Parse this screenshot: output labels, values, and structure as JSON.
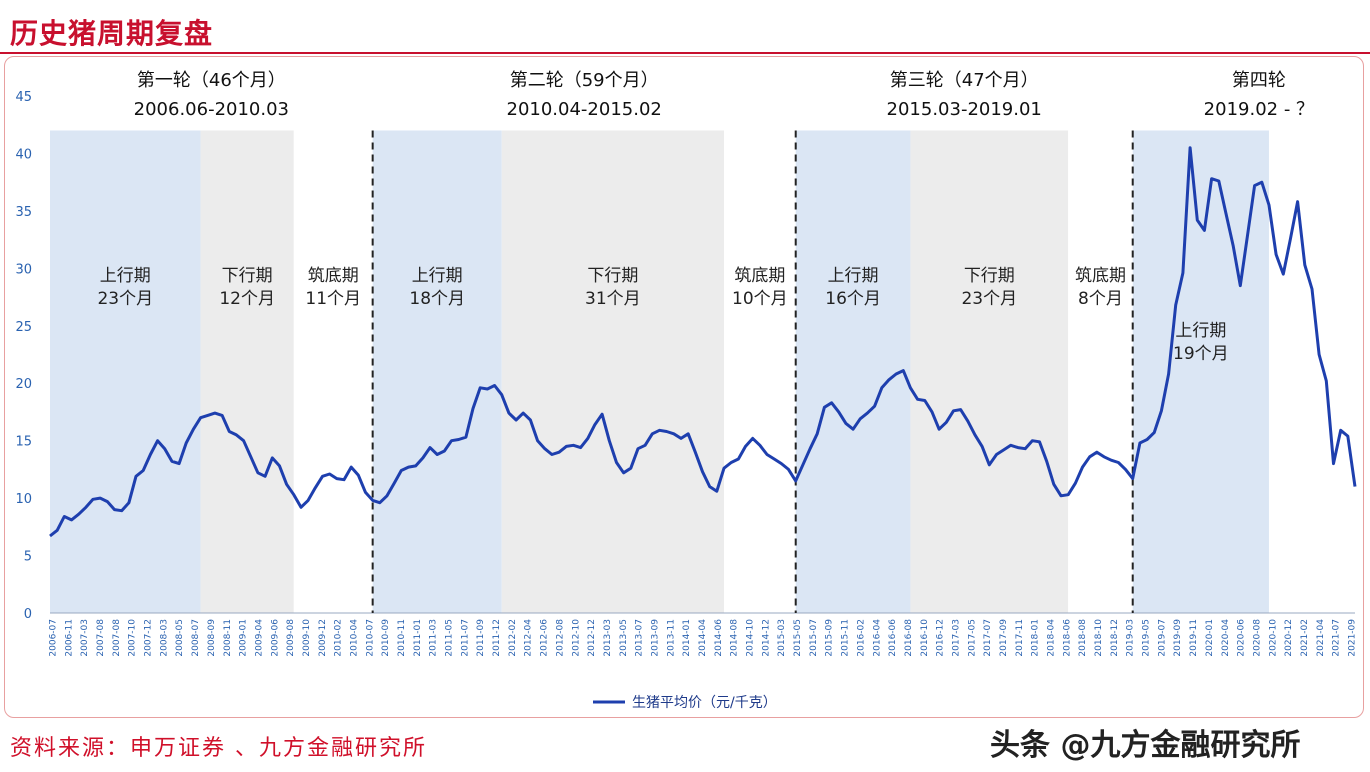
{
  "page_title": "历史猪周期复盘",
  "source_text": "资料来源：申万证券 、九方金融研究所",
  "watermark": "头条 @九方金融研究所",
  "colors": {
    "line": "#1e3fae",
    "shade_up": "#dbe6f4",
    "shade_down": "#ececec",
    "axis_text": "#2a62b0",
    "accent": "#c8102e"
  },
  "chart_data": {
    "type": "line",
    "ylim": [
      0,
      45
    ],
    "yticks": [
      0,
      5,
      10,
      15,
      20,
      25,
      30,
      35,
      40,
      45
    ],
    "xlim": [
      "2006-07",
      "2021-09"
    ],
    "xticks": [
      "2006-07",
      "2006-11",
      "2007-03",
      "2007-08",
      "2007-08",
      "2007-10",
      "2007-12",
      "2008-03",
      "2008-05",
      "2008-07",
      "2008-09",
      "2008-11",
      "2009-01",
      "2009-04",
      "2009-06",
      "2009-08",
      "2009-10",
      "2009-12",
      "2010-02",
      "2010-04",
      "2010-07",
      "2010-09",
      "2010-11",
      "2011-01",
      "2011-03",
      "2011-05",
      "2011-07",
      "2011-09",
      "2011-12",
      "2012-02",
      "2012-04",
      "2012-06",
      "2012-08",
      "2012-10",
      "2012-12",
      "2013-03",
      "2013-05",
      "2013-07",
      "2013-09",
      "2013-11",
      "2014-01",
      "2014-04",
      "2014-06",
      "2014-08",
      "2014-10",
      "2014-12",
      "2015-03",
      "2015-05",
      "2015-07",
      "2015-09",
      "2015-11",
      "2016-02",
      "2016-04",
      "2016-06",
      "2016-08",
      "2016-10",
      "2016-12",
      "2017-03",
      "2017-05",
      "2017-07",
      "2017-09",
      "2017-11",
      "2018-01",
      "2018-04",
      "2018-06",
      "2018-08",
      "2018-10",
      "2018-12",
      "2019-03",
      "2019-05",
      "2019-07",
      "2019-09",
      "2019-11",
      "2020-01",
      "2020-04",
      "2020-06",
      "2020-08",
      "2020-10",
      "2020-12",
      "2021-02",
      "2021-04",
      "2021-07",
      "2021-09"
    ],
    "legend": "生猪平均价（元/千克）",
    "rounds": [
      {
        "name": "第一轮（46个月）",
        "range": "2006.06-2010.03",
        "start": "2006-07",
        "end": "2010-04"
      },
      {
        "name": "第二轮（59个月）",
        "range": "2010.04-2015.02",
        "start": "2010-04",
        "end": "2015-03"
      },
      {
        "name": "第三轮（47个月）",
        "range": "2015.03-2019.01",
        "start": "2015-03",
        "end": "2019-02"
      },
      {
        "name": "第四轮",
        "range": "2019.02 - ？",
        "start": "2019-02",
        "end": "2021-09"
      }
    ],
    "phases": [
      {
        "label": "上行期",
        "months": "23个月",
        "kind": "up",
        "start": "2006-07",
        "end": "2008-04"
      },
      {
        "label": "下行期",
        "months": "12个月",
        "kind": "down",
        "start": "2008-04",
        "end": "2009-05"
      },
      {
        "label": "筑底期",
        "months": "11个月",
        "kind": "base",
        "start": "2009-05",
        "end": "2010-04"
      },
      {
        "label": "上行期",
        "months": "18个月",
        "kind": "up",
        "start": "2010-04",
        "end": "2011-10"
      },
      {
        "label": "下行期",
        "months": "31个月",
        "kind": "down",
        "start": "2011-10",
        "end": "2014-05"
      },
      {
        "label": "筑底期",
        "months": "10个月",
        "kind": "base",
        "start": "2014-05",
        "end": "2015-03"
      },
      {
        "label": "上行期",
        "months": "16个月",
        "kind": "up",
        "start": "2015-03",
        "end": "2016-07"
      },
      {
        "label": "下行期",
        "months": "23个月",
        "kind": "down",
        "start": "2016-07",
        "end": "2018-05"
      },
      {
        "label": "筑底期",
        "months": "8个月",
        "kind": "base",
        "start": "2018-05",
        "end": "2019-02"
      },
      {
        "label": "上行期",
        "months": "19个月",
        "kind": "up",
        "start": "2019-02",
        "end": "2020-09"
      }
    ],
    "series": [
      {
        "name": "生猪平均价（元/千克）",
        "points": [
          [
            "2006-07",
            6.7
          ],
          [
            "2006-08",
            7.2
          ],
          [
            "2006-09",
            8.4
          ],
          [
            "2006-10",
            8.1
          ],
          [
            "2006-11",
            8.6
          ],
          [
            "2006-12",
            9.2
          ],
          [
            "2007-01",
            9.9
          ],
          [
            "2007-02",
            10.0
          ],
          [
            "2007-03",
            9.7
          ],
          [
            "2007-04",
            9.0
          ],
          [
            "2007-05",
            8.9
          ],
          [
            "2007-06",
            9.6
          ],
          [
            "2007-07",
            11.9
          ],
          [
            "2007-08",
            12.4
          ],
          [
            "2007-09",
            13.8
          ],
          [
            "2007-10",
            15.0
          ],
          [
            "2007-11",
            14.3
          ],
          [
            "2007-12",
            13.2
          ],
          [
            "2008-01",
            13.0
          ],
          [
            "2008-02",
            14.8
          ],
          [
            "2008-03",
            16.0
          ],
          [
            "2008-04",
            17.0
          ],
          [
            "2008-05",
            17.2
          ],
          [
            "2008-06",
            17.4
          ],
          [
            "2008-07",
            17.2
          ],
          [
            "2008-08",
            15.8
          ],
          [
            "2008-09",
            15.5
          ],
          [
            "2008-10",
            15.0
          ],
          [
            "2008-11",
            13.6
          ],
          [
            "2008-12",
            12.2
          ],
          [
            "2009-01",
            11.9
          ],
          [
            "2009-02",
            13.5
          ],
          [
            "2009-03",
            12.8
          ],
          [
            "2009-04",
            11.2
          ],
          [
            "2009-05",
            10.3
          ],
          [
            "2009-06",
            9.2
          ],
          [
            "2009-07",
            9.8
          ],
          [
            "2009-08",
            10.9
          ],
          [
            "2009-09",
            11.9
          ],
          [
            "2009-10",
            12.1
          ],
          [
            "2009-11",
            11.7
          ],
          [
            "2009-12",
            11.6
          ],
          [
            "2010-01",
            12.7
          ],
          [
            "2010-02",
            12.0
          ],
          [
            "2010-03",
            10.5
          ],
          [
            "2010-04",
            9.8
          ],
          [
            "2010-05",
            9.6
          ],
          [
            "2010-06",
            10.2
          ],
          [
            "2010-07",
            11.3
          ],
          [
            "2010-08",
            12.4
          ],
          [
            "2010-09",
            12.7
          ],
          [
            "2010-10",
            12.8
          ],
          [
            "2010-11",
            13.5
          ],
          [
            "2010-12",
            14.4
          ],
          [
            "2011-01",
            13.8
          ],
          [
            "2011-02",
            14.1
          ],
          [
            "2011-03",
            15.0
          ],
          [
            "2011-04",
            15.1
          ],
          [
            "2011-05",
            15.3
          ],
          [
            "2011-06",
            17.8
          ],
          [
            "2011-07",
            19.6
          ],
          [
            "2011-08",
            19.5
          ],
          [
            "2011-09",
            19.8
          ],
          [
            "2011-10",
            19.0
          ],
          [
            "2011-11",
            17.4
          ],
          [
            "2011-12",
            16.8
          ],
          [
            "2012-01",
            17.4
          ],
          [
            "2012-02",
            16.8
          ],
          [
            "2012-03",
            15.0
          ],
          [
            "2012-04",
            14.3
          ],
          [
            "2012-05",
            13.8
          ],
          [
            "2012-06",
            14.0
          ],
          [
            "2012-07",
            14.5
          ],
          [
            "2012-08",
            14.6
          ],
          [
            "2012-09",
            14.4
          ],
          [
            "2012-10",
            15.2
          ],
          [
            "2012-11",
            16.4
          ],
          [
            "2012-12",
            17.3
          ],
          [
            "2013-01",
            15.0
          ],
          [
            "2013-02",
            13.1
          ],
          [
            "2013-03",
            12.2
          ],
          [
            "2013-04",
            12.6
          ],
          [
            "2013-05",
            14.3
          ],
          [
            "2013-06",
            14.6
          ],
          [
            "2013-07",
            15.6
          ],
          [
            "2013-08",
            15.9
          ],
          [
            "2013-09",
            15.8
          ],
          [
            "2013-10",
            15.6
          ],
          [
            "2013-11",
            15.2
          ],
          [
            "2013-12",
            15.6
          ],
          [
            "2014-01",
            14.0
          ],
          [
            "2014-02",
            12.3
          ],
          [
            "2014-03",
            11.0
          ],
          [
            "2014-04",
            10.6
          ],
          [
            "2014-05",
            12.6
          ],
          [
            "2014-06",
            13.1
          ],
          [
            "2014-07",
            13.4
          ],
          [
            "2014-08",
            14.5
          ],
          [
            "2014-09",
            15.2
          ],
          [
            "2014-10",
            14.6
          ],
          [
            "2014-11",
            13.8
          ],
          [
            "2014-12",
            13.4
          ],
          [
            "2015-01",
            13.0
          ],
          [
            "2015-02",
            12.5
          ],
          [
            "2015-03",
            11.5
          ],
          [
            "2015-04",
            12.9
          ],
          [
            "2015-05",
            14.3
          ],
          [
            "2015-06",
            15.6
          ],
          [
            "2015-07",
            17.9
          ],
          [
            "2015-08",
            18.3
          ],
          [
            "2015-09",
            17.5
          ],
          [
            "2015-10",
            16.5
          ],
          [
            "2015-11",
            16.0
          ],
          [
            "2015-12",
            16.9
          ],
          [
            "2016-01",
            17.4
          ],
          [
            "2016-02",
            18.0
          ],
          [
            "2016-03",
            19.6
          ],
          [
            "2016-04",
            20.3
          ],
          [
            "2016-05",
            20.8
          ],
          [
            "2016-06",
            21.1
          ],
          [
            "2016-07",
            19.6
          ],
          [
            "2016-08",
            18.6
          ],
          [
            "2016-09",
            18.5
          ],
          [
            "2016-10",
            17.5
          ],
          [
            "2016-11",
            16.0
          ],
          [
            "2016-12",
            16.6
          ],
          [
            "2017-01",
            17.6
          ],
          [
            "2017-02",
            17.7
          ],
          [
            "2017-03",
            16.7
          ],
          [
            "2017-04",
            15.5
          ],
          [
            "2017-05",
            14.5
          ],
          [
            "2017-06",
            12.9
          ],
          [
            "2017-07",
            13.8
          ],
          [
            "2017-08",
            14.2
          ],
          [
            "2017-09",
            14.6
          ],
          [
            "2017-10",
            14.4
          ],
          [
            "2017-11",
            14.3
          ],
          [
            "2017-12",
            15.0
          ],
          [
            "2018-01",
            14.9
          ],
          [
            "2018-02",
            13.2
          ],
          [
            "2018-03",
            11.2
          ],
          [
            "2018-04",
            10.2
          ],
          [
            "2018-05",
            10.3
          ],
          [
            "2018-06",
            11.3
          ],
          [
            "2018-07",
            12.7
          ],
          [
            "2018-08",
            13.6
          ],
          [
            "2018-09",
            14.0
          ],
          [
            "2018-10",
            13.6
          ],
          [
            "2018-11",
            13.3
          ],
          [
            "2018-12",
            13.1
          ],
          [
            "2019-01",
            12.5
          ],
          [
            "2019-02",
            11.7
          ],
          [
            "2019-03",
            14.8
          ],
          [
            "2019-04",
            15.1
          ],
          [
            "2019-05",
            15.7
          ],
          [
            "2019-06",
            17.6
          ],
          [
            "2019-07",
            20.8
          ],
          [
            "2019-08",
            26.8
          ],
          [
            "2019-09",
            29.6
          ],
          [
            "2019-10",
            40.5
          ],
          [
            "2019-11",
            34.2
          ],
          [
            "2019-12",
            33.3
          ],
          [
            "2020-01",
            37.8
          ],
          [
            "2020-02",
            37.6
          ],
          [
            "2020-03",
            34.8
          ],
          [
            "2020-04",
            32.0
          ],
          [
            "2020-05",
            28.5
          ],
          [
            "2020-06",
            32.8
          ],
          [
            "2020-07",
            37.2
          ],
          [
            "2020-08",
            37.5
          ],
          [
            "2020-09",
            35.5
          ],
          [
            "2020-10",
            31.2
          ],
          [
            "2020-11",
            29.5
          ],
          [
            "2020-12",
            32.6
          ],
          [
            "2021-01",
            35.8
          ],
          [
            "2021-02",
            30.3
          ],
          [
            "2021-03",
            28.2
          ],
          [
            "2021-04",
            22.5
          ],
          [
            "2021-05",
            20.2
          ],
          [
            "2021-06",
            13.0
          ],
          [
            "2021-07",
            15.9
          ],
          [
            "2021-08",
            15.4
          ],
          [
            "2021-09",
            11.0
          ]
        ]
      }
    ]
  }
}
